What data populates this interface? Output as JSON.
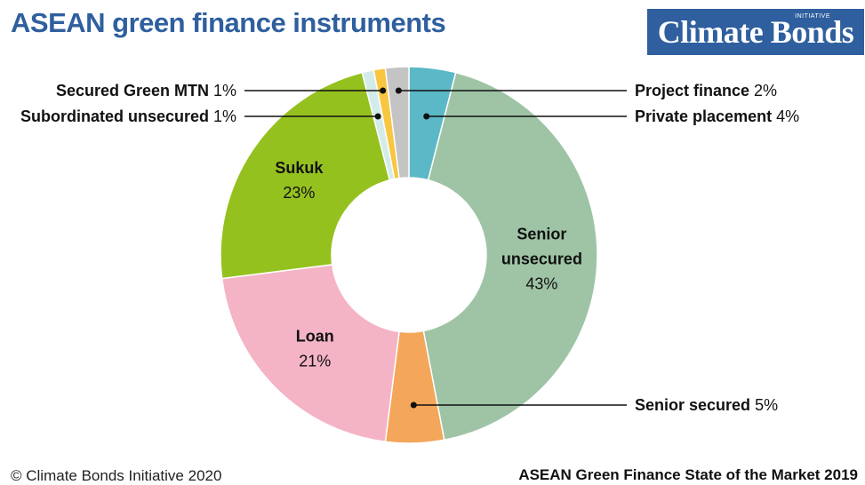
{
  "title": "ASEAN green finance instruments",
  "logo": {
    "text": "Climate Bonds",
    "superscript": "INITIATIVE",
    "background": "#2f5f9e"
  },
  "footer": {
    "copyright": "© Climate Bonds Initiative 2020",
    "source": "ASEAN Green Finance State of the Market 2019"
  },
  "chart_data": {
    "type": "pie",
    "donut": true,
    "slices": [
      {
        "name": "Private placement",
        "value": 4,
        "label": "4%",
        "color": "#5bb8c7"
      },
      {
        "name": "Senior unsecured",
        "value": 43,
        "label": "43%",
        "color": "#9ec4a5"
      },
      {
        "name": "Senior secured",
        "value": 5,
        "label": "5%",
        "color": "#f4a65a"
      },
      {
        "name": "Loan",
        "value": 21,
        "label": "21%",
        "color": "#f4b4c6"
      },
      {
        "name": "Sukuk",
        "value": 23,
        "label": "23%",
        "color": "#95c11f"
      },
      {
        "name": "Subordinated unsecured",
        "value": 1,
        "label": "1%",
        "color": "#d3ece9"
      },
      {
        "name": "Secured Green MTN",
        "value": 1,
        "label": "1%",
        "color": "#f9c642"
      },
      {
        "name": "Project finance",
        "value": 2,
        "label": "2%",
        "color": "#c4c4c4"
      }
    ],
    "inside_labels": [
      {
        "slice": "Senior unsecured",
        "lines": [
          "Senior",
          "unsecured"
        ],
        "pct": "43%"
      },
      {
        "slice": "Loan",
        "lines": [
          "Loan"
        ],
        "pct": "21%"
      },
      {
        "slice": "Sukuk",
        "lines": [
          "Sukuk"
        ],
        "pct": "23%"
      }
    ],
    "callouts": [
      {
        "slice": "Project finance",
        "name": "Project finance",
        "pct": "2%",
        "side": "right"
      },
      {
        "slice": "Private placement",
        "name": "Private placement",
        "pct": "4%",
        "side": "right"
      },
      {
        "slice": "Senior secured",
        "name": "Senior secured",
        "pct": "5%",
        "side": "right"
      },
      {
        "slice": "Secured Green MTN",
        "name": "Secured Green MTN",
        "pct": "1%",
        "side": "left"
      },
      {
        "slice": "Subordinated unsecured",
        "name": "Subordinated unsecured",
        "pct": "1%",
        "side": "left"
      }
    ]
  }
}
